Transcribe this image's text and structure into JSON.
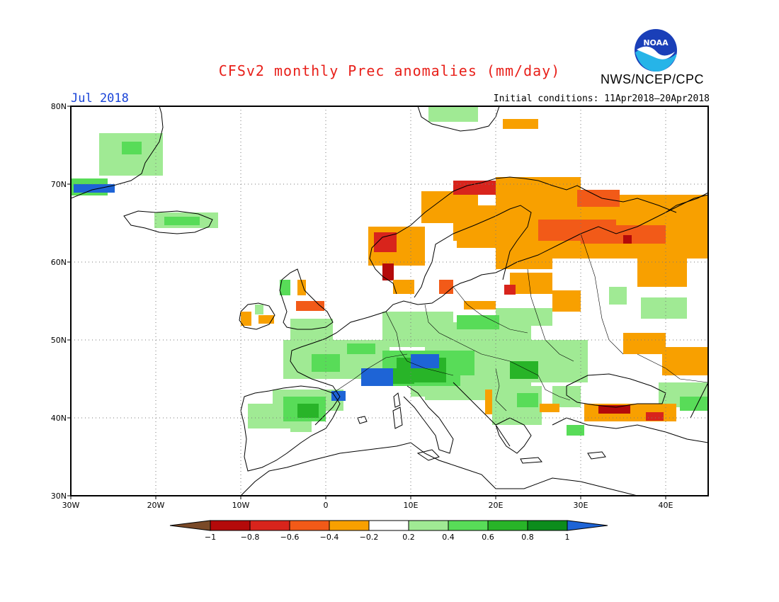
{
  "header": {
    "title": "CFSv2 monthly Prec anomalies (mm/day)",
    "agency": "NWS/NCEP/CPC",
    "logo_text": "NOAA",
    "month": "Jul 2018",
    "initial_conditions": "Initial conditions: 11Apr2018–20Apr2018"
  },
  "map": {
    "lon_range": [
      -30,
      45
    ],
    "lat_range": [
      30,
      80
    ],
    "lat_ticks": [
      "30N",
      "40N",
      "50N",
      "60N",
      "70N",
      "80N"
    ],
    "lon_ticks": [
      "30W",
      "20W",
      "10W",
      "0",
      "10E",
      "20E",
      "30E",
      "40E"
    ],
    "grid_lines": "dotted"
  },
  "legend": {
    "labels": [
      "−1",
      "−0.8",
      "−0.6",
      "−0.4",
      "−0.2",
      "0.2",
      "0.4",
      "0.6",
      "0.8",
      "1"
    ],
    "colors": [
      "#7a4a28",
      "#b40a0a",
      "#d8241c",
      "#f25a18",
      "#f8a000",
      "#ffffff",
      "#a0ea94",
      "#58dc58",
      "#28b428",
      "#0c8c1c",
      "#1e64d6"
    ]
  },
  "anomaly_colors": {
    "green_light": "#a0ea94",
    "green_mid": "#58dc58",
    "green_dark": "#28b428",
    "green_deep": "#0c8c1c",
    "blue": "#1e64d6",
    "orange": "#f8a000",
    "orange_red": "#f25a18",
    "red": "#d8241c",
    "dark_red": "#b40a0a"
  }
}
